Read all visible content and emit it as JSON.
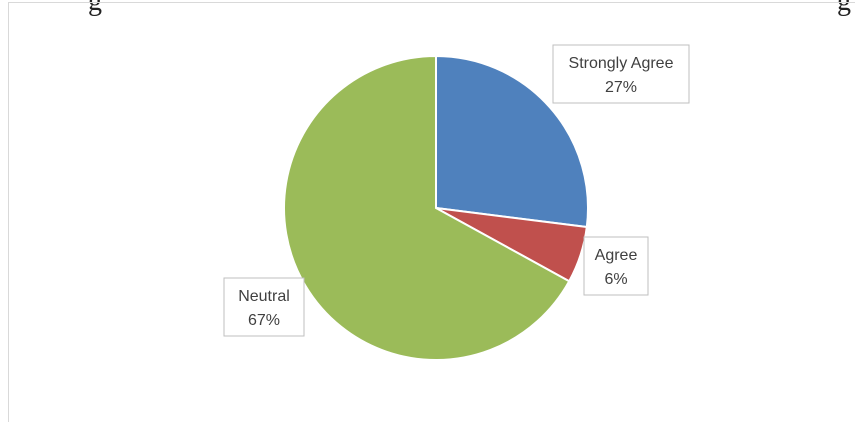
{
  "clipped_text": {
    "left": "g",
    "right": "g"
  },
  "chart_data": {
    "type": "pie",
    "title": "",
    "start_angle_deg": 0,
    "direction": "clockwise",
    "legend": "none",
    "slices": [
      {
        "name": "Strongly Agree",
        "value": 27,
        "label": "27%",
        "color": "#4f81bd"
      },
      {
        "name": "Agree",
        "value": 6,
        "label": "6%",
        "color": "#c0504d"
      },
      {
        "name": "Neutral",
        "value": 67,
        "label": "67%",
        "color": "#9bbb59"
      }
    ]
  }
}
